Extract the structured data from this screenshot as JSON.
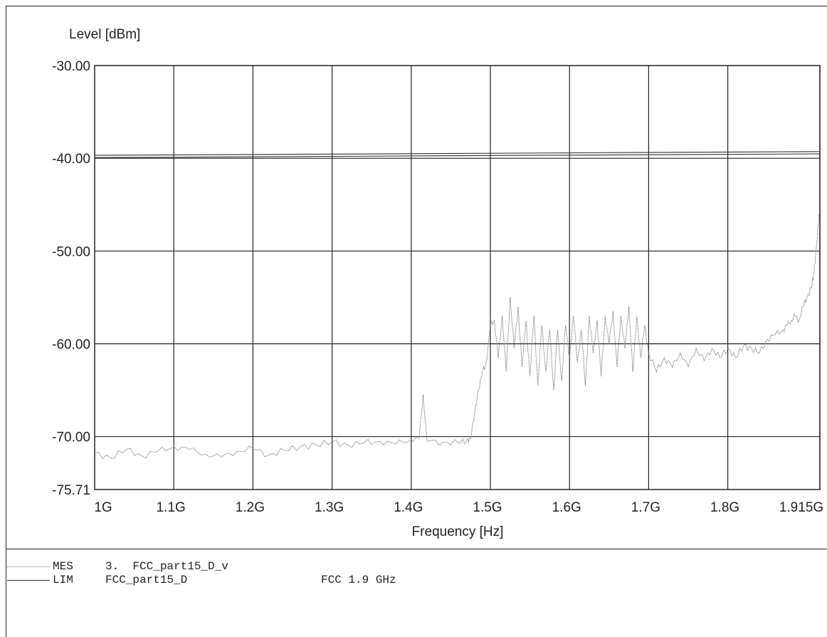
{
  "chart_data": {
    "type": "line",
    "ylabel": "Level [dBm]",
    "xlabel": "Frequency [Hz]",
    "xlim": [
      1.0,
      1.915
    ],
    "ylim": [
      -75.71,
      -30.0
    ],
    "x_ticks": [
      {
        "value": 1.0,
        "label": "1G"
      },
      {
        "value": 1.1,
        "label": "1.1G"
      },
      {
        "value": 1.2,
        "label": "1.2G"
      },
      {
        "value": 1.3,
        "label": "1.3G"
      },
      {
        "value": 1.4,
        "label": "1.4G"
      },
      {
        "value": 1.5,
        "label": "1.5G"
      },
      {
        "value": 1.6,
        "label": "1.6G"
      },
      {
        "value": 1.7,
        "label": "1.7G"
      },
      {
        "value": 1.8,
        "label": "1.8G"
      },
      {
        "value": 1.915,
        "label": "1.915G"
      }
    ],
    "y_ticks": [
      {
        "value": -30.0,
        "label": "-30.00"
      },
      {
        "value": -40.0,
        "label": "-40.00"
      },
      {
        "value": -50.0,
        "label": "-50.00"
      },
      {
        "value": -60.0,
        "label": "-60.00"
      },
      {
        "value": -70.0,
        "label": "-70.00"
      },
      {
        "value": -75.71,
        "label": "-75.71"
      }
    ],
    "grid": true,
    "series": [
      {
        "name": "FCC_part15_D",
        "tag": "LIM",
        "color": "#333333",
        "style": "double",
        "x": [
          1.0,
          1.915
        ],
        "y": [
          -39.8,
          -39.4
        ]
      },
      {
        "name": "3. FCC_part15_D_v",
        "tag": "MES",
        "color": "#777777",
        "style": "dotted",
        "x": [
          1.0,
          1.02,
          1.04,
          1.06,
          1.08,
          1.1,
          1.12,
          1.14,
          1.16,
          1.18,
          1.2,
          1.22,
          1.24,
          1.26,
          1.28,
          1.3,
          1.32,
          1.34,
          1.36,
          1.38,
          1.4,
          1.41,
          1.415,
          1.42,
          1.44,
          1.46,
          1.47,
          1.475,
          1.48,
          1.485,
          1.49,
          1.495,
          1.5,
          1.505,
          1.51,
          1.515,
          1.52,
          1.525,
          1.53,
          1.535,
          1.54,
          1.545,
          1.55,
          1.555,
          1.56,
          1.565,
          1.57,
          1.575,
          1.58,
          1.585,
          1.59,
          1.595,
          1.6,
          1.605,
          1.61,
          1.615,
          1.62,
          1.625,
          1.63,
          1.635,
          1.64,
          1.645,
          1.65,
          1.655,
          1.66,
          1.665,
          1.67,
          1.675,
          1.68,
          1.685,
          1.69,
          1.695,
          1.7,
          1.71,
          1.72,
          1.73,
          1.74,
          1.75,
          1.76,
          1.77,
          1.78,
          1.79,
          1.8,
          1.81,
          1.82,
          1.83,
          1.84,
          1.85,
          1.86,
          1.87,
          1.875,
          1.88,
          1.885,
          1.89,
          1.895,
          1.9,
          1.905,
          1.908,
          1.911,
          1.914
        ],
        "y": [
          -71.8,
          -72.3,
          -71.4,
          -72.1,
          -71.6,
          -71.1,
          -71.4,
          -71.9,
          -72.2,
          -71.6,
          -71.3,
          -72.0,
          -71.5,
          -71.1,
          -70.9,
          -70.6,
          -70.9,
          -70.7,
          -70.5,
          -70.8,
          -70.3,
          -70.2,
          -65.5,
          -70.5,
          -70.6,
          -70.7,
          -70.4,
          -70.2,
          -67.5,
          -65.0,
          -63.0,
          -62.0,
          -58.0,
          -57.5,
          -61.5,
          -57.0,
          -63.0,
          -55.0,
          -60.5,
          -56.0,
          -62.5,
          -57.5,
          -63.5,
          -57.0,
          -64.5,
          -58.0,
          -63.0,
          -58.5,
          -65.0,
          -58.5,
          -64.0,
          -58.0,
          -61.5,
          -57.0,
          -62.0,
          -58.5,
          -64.5,
          -57.0,
          -61.0,
          -57.5,
          -63.5,
          -57.0,
          -60.0,
          -56.5,
          -62.5,
          -57.0,
          -60.5,
          -56.0,
          -63.0,
          -57.0,
          -61.5,
          -58.0,
          -61.0,
          -63.0,
          -61.5,
          -62.5,
          -61.0,
          -62.5,
          -60.5,
          -61.8,
          -60.5,
          -61.5,
          -60.5,
          -61.5,
          -60.2,
          -60.5,
          -61.0,
          -59.5,
          -59.0,
          -58.5,
          -58.0,
          -57.5,
          -57.0,
          -57.5,
          -56.0,
          -55.0,
          -54.0,
          -52.5,
          -49.5,
          -46.0
        ]
      }
    ]
  },
  "legend": [
    {
      "tag": "MES",
      "name": "3.  FCC_part15_D_v",
      "extra": "",
      "color": "#777777",
      "style": "dotted"
    },
    {
      "tag": "LIM",
      "name": "FCC_part15_D",
      "extra": "FCC 1.9 GHz",
      "color": "#333333",
      "style": "solid"
    }
  ]
}
